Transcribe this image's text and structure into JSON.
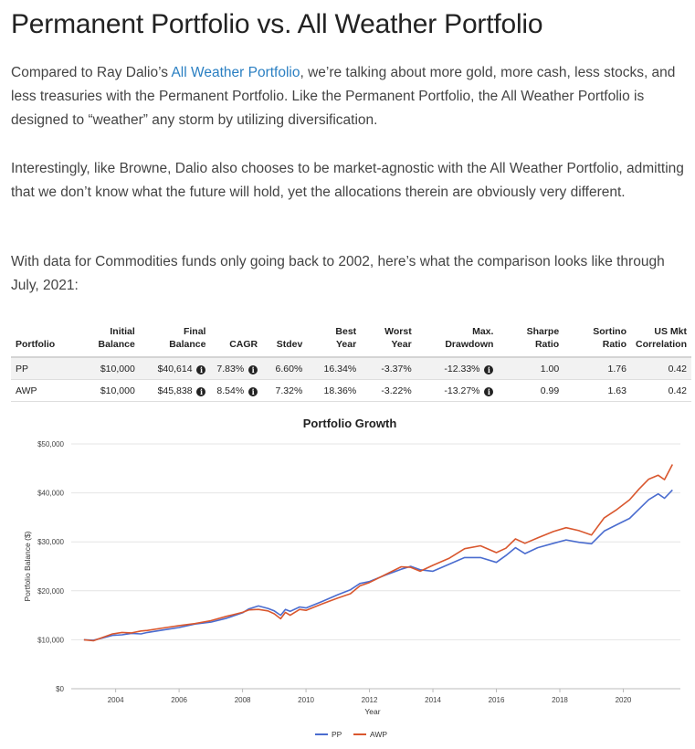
{
  "heading": "Permanent Portfolio vs. All Weather Portfolio",
  "paragraphs": {
    "p1_before": "Compared to Ray Dalio’s ",
    "p1_link": "All Weather Portfolio",
    "p1_after": ", we’re talking about more gold, more cash, less stocks, and less treasuries with the Permanent Portfolio. Like the Permanent Portfolio, the All Weather Portfolio is designed to “weather” any storm by utilizing diversification.",
    "p2": "Interestingly, like Browne, Dalio also chooses to be market-agnostic with the All Weather Portfolio, admitting that we don’t know what the future will hold, yet the allocations therein are obviously very different.",
    "p3": "With data for Commodities funds only going back to 2002, here’s what the comparison looks like through July, 2021:"
  },
  "table": {
    "headers": {
      "portfolio": "Portfolio",
      "initial": [
        "Initial",
        "Balance"
      ],
      "final": [
        "Final",
        "Balance"
      ],
      "cagr": "CAGR",
      "stdev": "Stdev",
      "best": [
        "Best",
        "Year"
      ],
      "worst": [
        "Worst",
        "Year"
      ],
      "drawdown": [
        "Max.",
        "Drawdown"
      ],
      "sharpe": [
        "Sharpe",
        "Ratio"
      ],
      "sortino": [
        "Sortino",
        "Ratio"
      ],
      "corr": [
        "US Mkt",
        "Correlation"
      ]
    },
    "info_glyph": "i",
    "rows": [
      {
        "portfolio": "PP",
        "initial": "$10,000",
        "final": "$40,614",
        "cagr": "7.83%",
        "stdev": "6.60%",
        "best": "16.34%",
        "worst": "-3.37%",
        "drawdown": "-12.33%",
        "sharpe": "1.00",
        "sortino": "1.76",
        "corr": "0.42"
      },
      {
        "portfolio": "AWP",
        "initial": "$10,000",
        "final": "$45,838",
        "cagr": "8.54%",
        "stdev": "7.32%",
        "best": "18.36%",
        "worst": "-3.22%",
        "drawdown": "-13.27%",
        "sharpe": "0.99",
        "sortino": "1.63",
        "corr": "0.42"
      }
    ]
  },
  "chart_data": {
    "type": "line",
    "title": "Portfolio Growth",
    "xlabel": "Year",
    "ylabel": "Portfolio Balance ($)",
    "xlim": [
      2002.6,
      2021.8
    ],
    "ylim": [
      0,
      50000
    ],
    "x_ticks": [
      2004,
      2006,
      2008,
      2010,
      2012,
      2014,
      2016,
      2018,
      2020
    ],
    "y_ticks": [
      0,
      10000,
      20000,
      30000,
      40000,
      50000
    ],
    "y_tick_labels": [
      "$0",
      "$10,000",
      "$20,000",
      "$30,000",
      "$40,000",
      "$50,000"
    ],
    "legend_position": "bottom-center",
    "series": [
      {
        "name": "PP",
        "color": "#4a6ccf",
        "points": [
          [
            2003.0,
            10000
          ],
          [
            2003.3,
            9900
          ],
          [
            2003.6,
            10400
          ],
          [
            2003.9,
            10900
          ],
          [
            2004.2,
            11000
          ],
          [
            2004.5,
            11300
          ],
          [
            2004.8,
            11200
          ],
          [
            2005.0,
            11500
          ],
          [
            2005.5,
            12000
          ],
          [
            2006.0,
            12500
          ],
          [
            2006.5,
            13200
          ],
          [
            2007.0,
            13600
          ],
          [
            2007.5,
            14400
          ],
          [
            2008.0,
            15500
          ],
          [
            2008.2,
            16300
          ],
          [
            2008.5,
            16900
          ],
          [
            2008.8,
            16400
          ],
          [
            2009.0,
            15900
          ],
          [
            2009.2,
            15000
          ],
          [
            2009.35,
            16200
          ],
          [
            2009.5,
            15800
          ],
          [
            2009.8,
            16700
          ],
          [
            2010.0,
            16500
          ],
          [
            2010.5,
            17800
          ],
          [
            2011.0,
            19200
          ],
          [
            2011.4,
            20200
          ],
          [
            2011.7,
            21500
          ],
          [
            2012.0,
            21900
          ],
          [
            2012.5,
            23200
          ],
          [
            2013.0,
            24400
          ],
          [
            2013.3,
            25000
          ],
          [
            2013.6,
            24300
          ],
          [
            2014.0,
            24000
          ],
          [
            2014.5,
            25400
          ],
          [
            2015.0,
            26800
          ],
          [
            2015.5,
            26800
          ],
          [
            2016.0,
            25800
          ],
          [
            2016.3,
            27200
          ],
          [
            2016.6,
            28800
          ],
          [
            2016.9,
            27600
          ],
          [
            2017.3,
            28800
          ],
          [
            2017.8,
            29700
          ],
          [
            2018.2,
            30400
          ],
          [
            2018.6,
            29900
          ],
          [
            2019.0,
            29600
          ],
          [
            2019.4,
            32200
          ],
          [
            2019.8,
            33500
          ],
          [
            2020.2,
            34800
          ],
          [
            2020.5,
            36700
          ],
          [
            2020.8,
            38600
          ],
          [
            2021.1,
            39800
          ],
          [
            2021.3,
            38900
          ],
          [
            2021.55,
            40600
          ]
        ]
      },
      {
        "name": "AWP",
        "color": "#d9572e",
        "points": [
          [
            2003.0,
            10000
          ],
          [
            2003.3,
            9800
          ],
          [
            2003.6,
            10500
          ],
          [
            2003.9,
            11200
          ],
          [
            2004.2,
            11500
          ],
          [
            2004.5,
            11400
          ],
          [
            2004.8,
            11800
          ],
          [
            2005.0,
            11900
          ],
          [
            2005.5,
            12400
          ],
          [
            2006.0,
            12900
          ],
          [
            2006.5,
            13300
          ],
          [
            2007.0,
            13900
          ],
          [
            2007.5,
            14800
          ],
          [
            2008.0,
            15600
          ],
          [
            2008.2,
            16100
          ],
          [
            2008.5,
            16200
          ],
          [
            2008.8,
            15900
          ],
          [
            2009.0,
            15300
          ],
          [
            2009.2,
            14300
          ],
          [
            2009.35,
            15600
          ],
          [
            2009.5,
            15000
          ],
          [
            2009.8,
            16200
          ],
          [
            2010.0,
            16000
          ],
          [
            2010.5,
            17300
          ],
          [
            2011.0,
            18500
          ],
          [
            2011.4,
            19400
          ],
          [
            2011.7,
            21000
          ],
          [
            2012.0,
            21700
          ],
          [
            2012.5,
            23300
          ],
          [
            2013.0,
            24900
          ],
          [
            2013.3,
            24800
          ],
          [
            2013.6,
            24000
          ],
          [
            2014.0,
            25200
          ],
          [
            2014.5,
            26600
          ],
          [
            2015.0,
            28600
          ],
          [
            2015.5,
            29200
          ],
          [
            2016.0,
            27800
          ],
          [
            2016.3,
            28700
          ],
          [
            2016.6,
            30600
          ],
          [
            2016.9,
            29700
          ],
          [
            2017.3,
            30800
          ],
          [
            2017.8,
            32100
          ],
          [
            2018.2,
            32900
          ],
          [
            2018.6,
            32300
          ],
          [
            2019.0,
            31400
          ],
          [
            2019.4,
            34900
          ],
          [
            2019.8,
            36600
          ],
          [
            2020.2,
            38600
          ],
          [
            2020.5,
            40800
          ],
          [
            2020.8,
            42800
          ],
          [
            2021.1,
            43600
          ],
          [
            2021.3,
            42700
          ],
          [
            2021.55,
            45800
          ]
        ]
      }
    ]
  }
}
